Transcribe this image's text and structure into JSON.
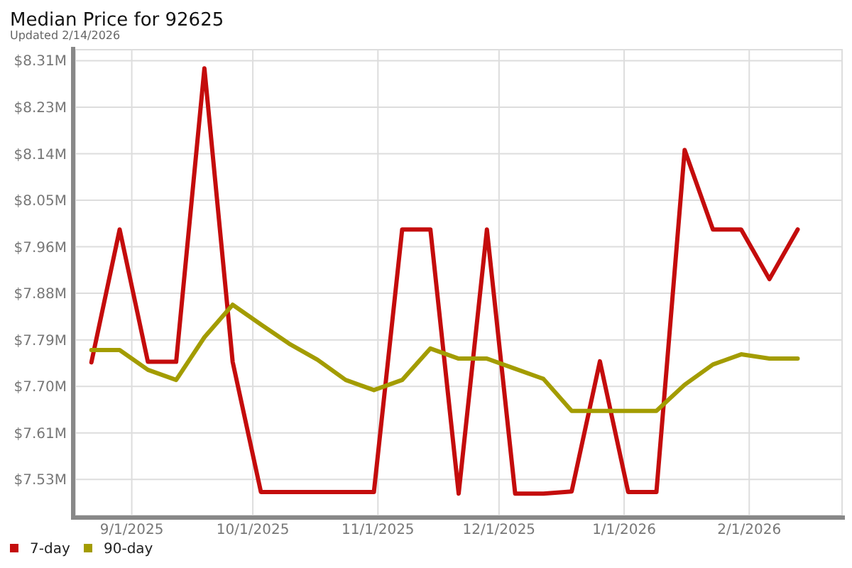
{
  "chart_data": {
    "type": "line",
    "title": "Median Price for 92625",
    "subtitle": "Updated 2/14/2026",
    "x": [
      "2025-08-22",
      "2025-08-29",
      "2025-09-05",
      "2025-09-12",
      "2025-09-19",
      "2025-09-26",
      "2025-10-03",
      "2025-10-10",
      "2025-10-17",
      "2025-10-24",
      "2025-10-31",
      "2025-11-07",
      "2025-11-14",
      "2025-11-21",
      "2025-11-28",
      "2025-12-05",
      "2025-12-12",
      "2025-12-19",
      "2025-12-26",
      "2026-01-02",
      "2026-01-09",
      "2026-01-16",
      "2026-01-23",
      "2026-01-30",
      "2026-02-06",
      "2026-02-13"
    ],
    "series": [
      {
        "name": "7-day",
        "color": "#c40c0c",
        "values": [
          7.747,
          7.996,
          7.748,
          7.748,
          8.298,
          7.748,
          7.504,
          7.504,
          7.504,
          7.504,
          7.504,
          7.996,
          7.996,
          7.501,
          7.996,
          7.501,
          7.501,
          7.505,
          7.749,
          7.504,
          7.504,
          8.145,
          7.996,
          7.996,
          7.903,
          7.996
        ]
      },
      {
        "name": "90-day",
        "color": "#a39c00",
        "values": [
          7.77,
          7.77,
          7.733,
          7.714,
          7.794,
          7.855,
          7.818,
          7.782,
          7.752,
          7.714,
          7.695,
          7.714,
          7.773,
          7.754,
          7.754,
          7.735,
          7.716,
          7.656,
          7.656,
          7.656,
          7.656,
          7.705,
          7.743,
          7.762,
          7.754,
          7.754
        ]
      }
    ],
    "xlim": [
      "2025-08-18",
      "2026-02-24"
    ],
    "xticks": [
      {
        "value": "2025-09-01",
        "label": "9/1/2025"
      },
      {
        "value": "2025-10-01",
        "label": "10/1/2025"
      },
      {
        "value": "2025-11-01",
        "label": "11/1/2025"
      },
      {
        "value": "2025-12-01",
        "label": "12/1/2025"
      },
      {
        "value": "2026-01-01",
        "label": "1/1/2026"
      },
      {
        "value": "2026-02-01",
        "label": "2/1/2026"
      }
    ],
    "ylim": [
      7.46,
      8.333
    ],
    "yticks": [
      {
        "value": 7.5276,
        "label": "$7.53M"
      },
      {
        "value": 7.6148,
        "label": "$7.61M"
      },
      {
        "value": 7.702,
        "label": "$7.70M"
      },
      {
        "value": 7.7892,
        "label": "$7.79M"
      },
      {
        "value": 7.8764,
        "label": "$7.88M"
      },
      {
        "value": 7.9636,
        "label": "$7.96M"
      },
      {
        "value": 8.0508,
        "label": "$8.05M"
      },
      {
        "value": 8.138,
        "label": "$8.14M"
      },
      {
        "value": 8.2252,
        "label": "$8.23M"
      },
      {
        "value": 8.3124,
        "label": "$8.31M"
      }
    ],
    "grid": true,
    "legend": "bottom left"
  }
}
